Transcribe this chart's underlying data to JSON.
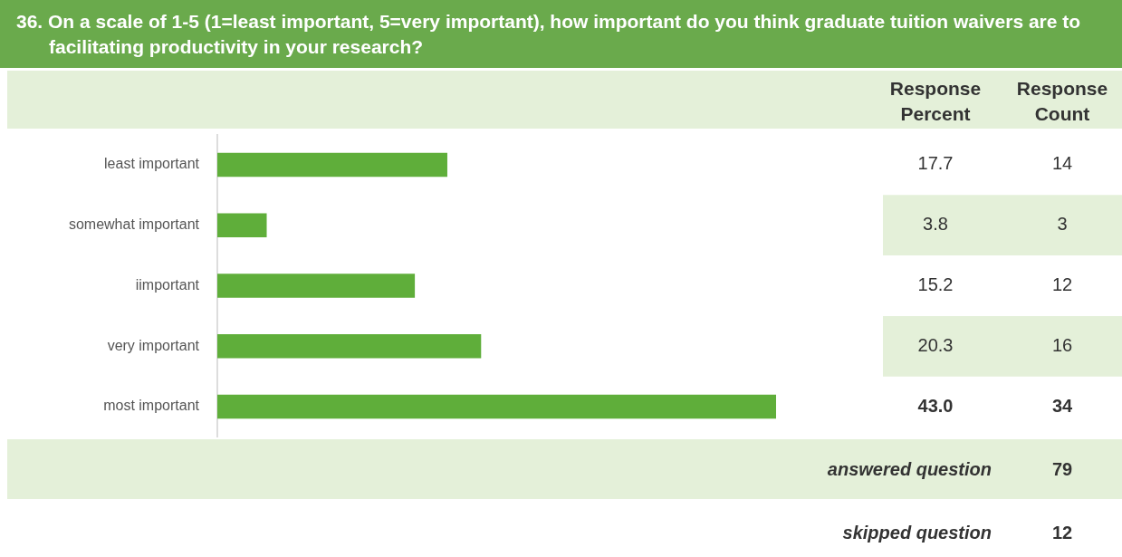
{
  "chart_data": {
    "type": "bar",
    "orientation": "horizontal",
    "title": "36.  On a scale of 1-5 (1=least important, 5=very important), how important do you think graduate tuition waivers are to facilitating productivity in your research?",
    "categories": [
      "least important",
      "somewhat important",
      "iimportant",
      "very important",
      "most important"
    ],
    "values": [
      17.7,
      3.8,
      15.2,
      20.3,
      43.0
    ],
    "value_labels": [
      "17.7",
      "3.8",
      "15.2",
      "20.3",
      "43.0"
    ],
    "color": "#5fae3a",
    "data_labels": true,
    "legend": false,
    "grid": false,
    "annotations": [
      "Response Percent",
      "Response Count",
      "14",
      "3",
      "12",
      "16",
      "34",
      "answered question",
      "79",
      "skipped question",
      "12"
    ]
  }
}
